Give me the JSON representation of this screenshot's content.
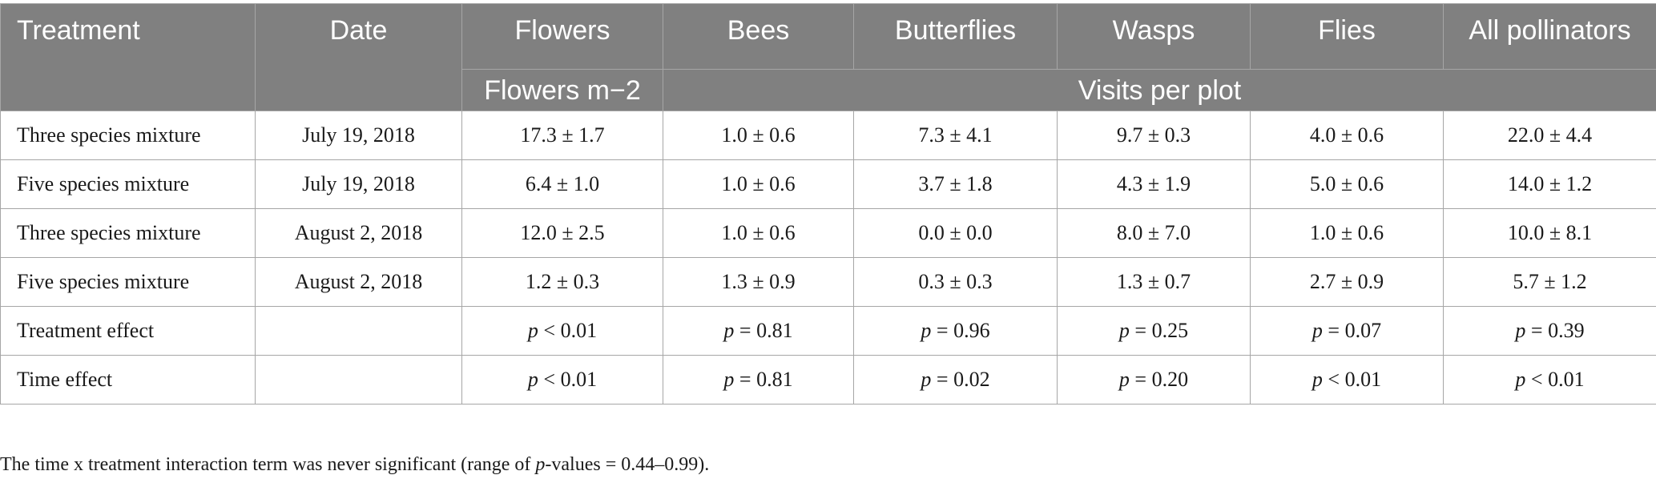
{
  "table": {
    "header": {
      "treatment": "Treatment",
      "date": "Date",
      "flowers": "Flowers",
      "bees": "Bees",
      "butterflies": "Butterflies",
      "wasps": "Wasps",
      "flies": "Flies",
      "all_pollinators": "All pollinators",
      "unit_flowers": "Flowers m−2",
      "unit_visits": "Visits per plot"
    },
    "rows": [
      {
        "treatment": "Three species mixture",
        "date": "July 19, 2018",
        "flowers": "17.3 ± 1.7",
        "bees": "1.0 ± 0.6",
        "butterflies": "7.3 ± 4.1",
        "wasps": "9.7 ± 0.3",
        "flies": "4.0 ± 0.6",
        "all": "22.0 ± 4.4"
      },
      {
        "treatment": "Five species mixture",
        "date": "July 19, 2018",
        "flowers": "6.4 ± 1.0",
        "bees": "1.0 ± 0.6",
        "butterflies": "3.7 ± 1.8",
        "wasps": "4.3 ± 1.9",
        "flies": "5.0 ± 0.6",
        "all": "14.0 ± 1.2"
      },
      {
        "treatment": "Three species mixture",
        "date": "August 2, 2018",
        "flowers": "12.0 ± 2.5",
        "bees": "1.0 ± 0.6",
        "butterflies": "0.0 ± 0.0",
        "wasps": "8.0 ± 7.0",
        "flies": "1.0 ± 0.6",
        "all": "10.0 ± 8.1"
      },
      {
        "treatment": "Five species mixture",
        "date": "August 2, 2018",
        "flowers": "1.2 ± 0.3",
        "bees": "1.3 ± 0.9",
        "butterflies": "0.3 ± 0.3",
        "wasps": "1.3 ± 0.7",
        "flies": "2.7 ± 0.9",
        "all": "5.7 ± 1.2"
      }
    ],
    "effects": [
      {
        "label": "Treatment effect",
        "flowers": {
          "sym": "p",
          "val": " < 0.01"
        },
        "bees": {
          "sym": "p",
          "val": " = 0.81"
        },
        "butterflies": {
          "sym": "p",
          "val": " = 0.96"
        },
        "wasps": {
          "sym": "p",
          "val": " = 0.25"
        },
        "flies": {
          "sym": "p",
          "val": " = 0.07"
        },
        "all": {
          "sym": "p",
          "val": " = 0.39"
        }
      },
      {
        "label": "Time effect",
        "flowers": {
          "sym": "p",
          "val": " < 0.01"
        },
        "bees": {
          "sym": "p",
          "val": " = 0.81"
        },
        "butterflies": {
          "sym": "p",
          "val": " = 0.02"
        },
        "wasps": {
          "sym": "p",
          "val": " = 0.20"
        },
        "flies": {
          "sym": "p",
          "val": " < 0.01"
        },
        "all": {
          "sym": "p",
          "val": " < 0.01"
        }
      }
    ]
  },
  "footnote": {
    "prefix": "The time x treatment interaction term was never significant (range of ",
    "p": "p",
    "suffix": "-values = 0.44–0.99)."
  }
}
